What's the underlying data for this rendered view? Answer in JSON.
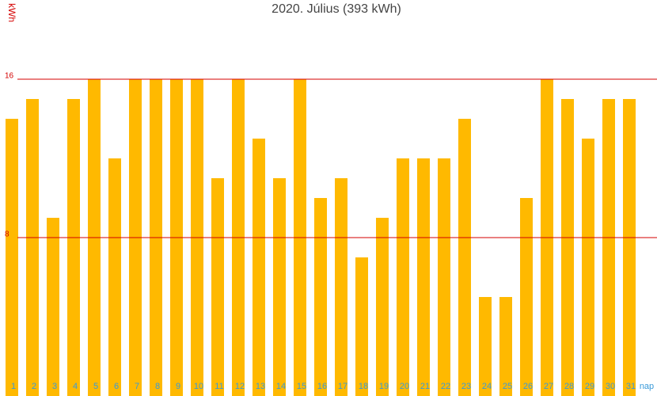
{
  "chart_data": {
    "type": "bar",
    "title": "2020. Július (393 kWh)",
    "x_label": "nap",
    "y_label": "kWh",
    "categories": [
      "1",
      "2",
      "3",
      "4",
      "5",
      "6",
      "7",
      "8",
      "9",
      "10",
      "11",
      "12",
      "13",
      "14",
      "15",
      "16",
      "17",
      "18",
      "19",
      "20",
      "21",
      "22",
      "23",
      "24",
      "25",
      "26",
      "27",
      "28",
      "29",
      "30",
      "31"
    ],
    "values": [
      14,
      15,
      9,
      15,
      16,
      12,
      16,
      16,
      16,
      16,
      11,
      16,
      13,
      11,
      16,
      10,
      11,
      7,
      9,
      12,
      12,
      12,
      14,
      5,
      5,
      10,
      16,
      15,
      13,
      15,
      15
    ],
    "color": "#ffb900",
    "ylim": [
      0,
      20
    ],
    "yticks": [
      8,
      16
    ],
    "grid": true,
    "grid_color": "#d40000"
  }
}
